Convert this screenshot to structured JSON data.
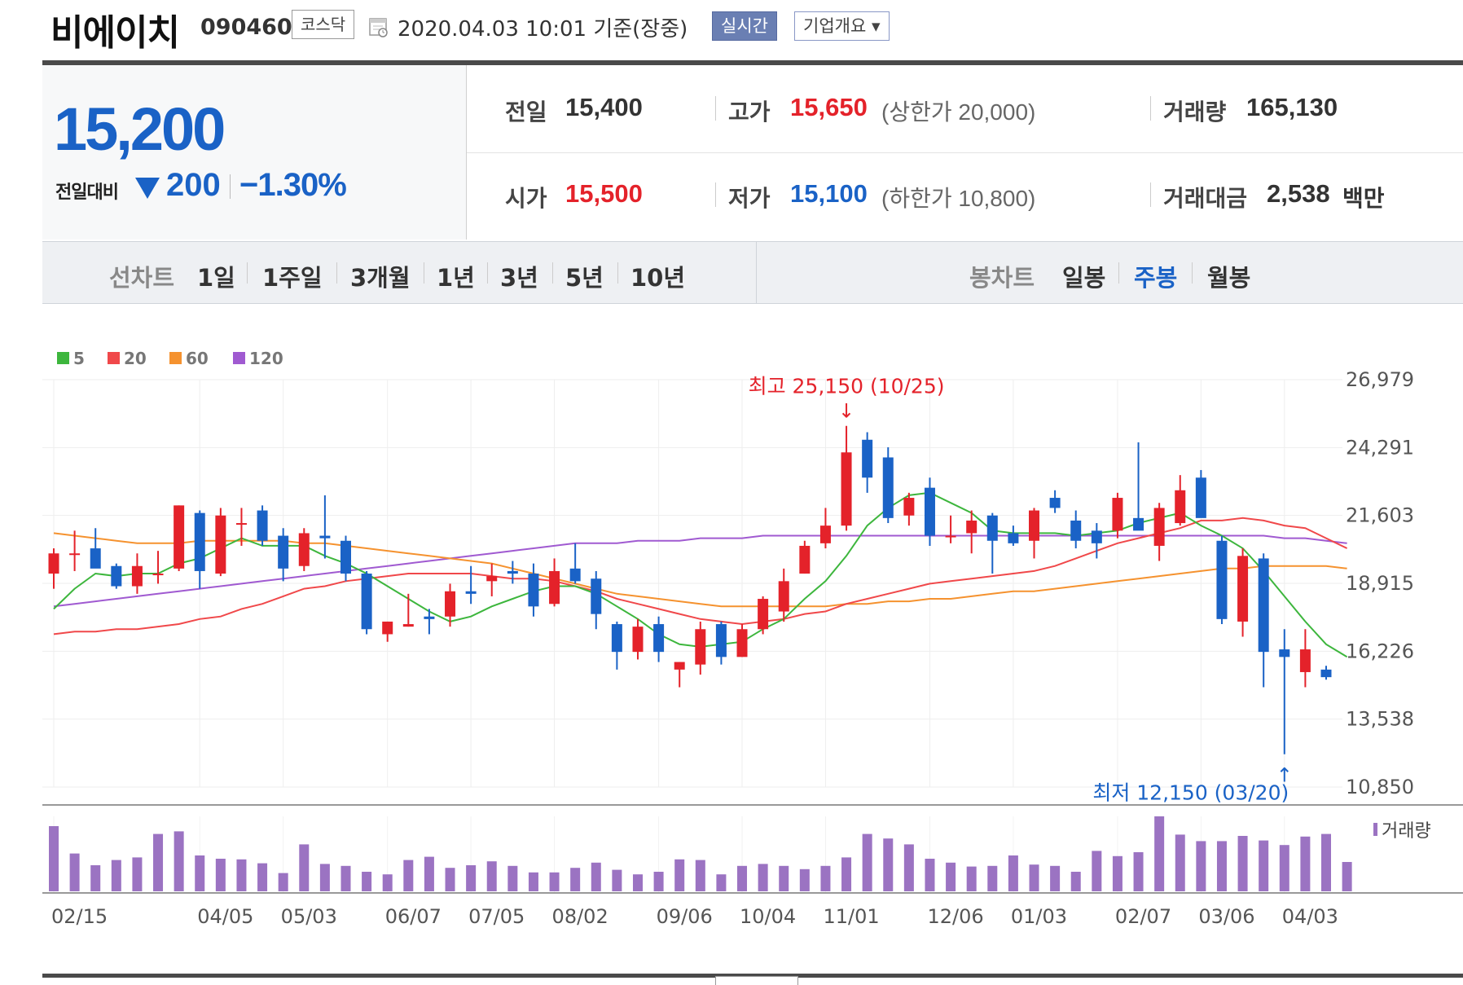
{
  "header": {
    "name": "비에이치",
    "code": "090460",
    "market": "코스닥",
    "timestamp": "2020.04.03 10:01  기준(장중)",
    "realtime_label": "실시간",
    "company_label": "기업개요 ▾"
  },
  "quote": {
    "current": "15,200",
    "diff_label": "전일대비",
    "diff": "200",
    "pct": "−1.30%",
    "prev_label": "전일",
    "prev": "15,400",
    "high_label": "고가",
    "high": "15,650",
    "upper_limit": "(상한가 20,000)",
    "volume_label": "거래량",
    "volume": "165,130",
    "open_label": "시가",
    "open": "15,500",
    "low_label": "저가",
    "low": "15,100",
    "lower_limit": "(하한가 10,800)",
    "amount_label": "거래대금",
    "amount": "2,538",
    "amount_unit": "백만"
  },
  "periods": {
    "line_title": "선차트",
    "line_items": [
      "1일",
      "1주일",
      "3개월",
      "1년",
      "3년",
      "5년",
      "10년"
    ],
    "candle_title": "봉차트",
    "candle_items": [
      "일봉",
      "주봉",
      "월봉"
    ],
    "active_candle": "주봉"
  },
  "colors": {
    "up": "#e4222a",
    "down": "#1a62c6",
    "ma5": "#3db63d",
    "ma20": "#f0484a",
    "ma60": "#f5922f",
    "ma120": "#a05ad1",
    "volume": "#9b73c2"
  },
  "chart_data": {
    "type": "candlestick",
    "legend": [
      "5",
      "20",
      "60",
      "120"
    ],
    "y_ticks": [
      "26,979",
      "24,291",
      "21,603",
      "18,915",
      "16,226",
      "13,538",
      "10,850"
    ],
    "ylim": [
      10850,
      26979
    ],
    "x_labels": [
      {
        "label": "02/15",
        "i": 0
      },
      {
        "label": "04/05",
        "i": 7
      },
      {
        "label": "05/03",
        "i": 11
      },
      {
        "label": "06/07",
        "i": 16
      },
      {
        "label": "07/05",
        "i": 20
      },
      {
        "label": "08/02",
        "i": 24
      },
      {
        "label": "09/06",
        "i": 29
      },
      {
        "label": "10/04",
        "i": 33
      },
      {
        "label": "11/01",
        "i": 37
      },
      {
        "label": "12/06",
        "i": 42
      },
      {
        "label": "01/03",
        "i": 46
      },
      {
        "label": "02/07",
        "i": 51
      },
      {
        "label": "03/06",
        "i": 55
      },
      {
        "label": "04/03",
        "i": 59
      }
    ],
    "high_annotation": "최고 25,150 (10/25)",
    "low_annotation": "최저 12,150 (03/20)",
    "volume_label": "거래량",
    "candles": [
      {
        "o": 19300,
        "h": 20300,
        "l": 18700,
        "c": 20100
      },
      {
        "o": 20100,
        "h": 21000,
        "l": 19400,
        "c": 20100
      },
      {
        "o": 20300,
        "h": 21100,
        "l": 19600,
        "c": 19500
      },
      {
        "o": 19600,
        "h": 19700,
        "l": 18700,
        "c": 18800
      },
      {
        "o": 18800,
        "h": 20100,
        "l": 18500,
        "c": 19600
      },
      {
        "o": 19300,
        "h": 20200,
        "l": 18900,
        "c": 19300
      },
      {
        "o": 19500,
        "h": 22000,
        "l": 19400,
        "c": 22000
      },
      {
        "o": 21700,
        "h": 21800,
        "l": 18700,
        "c": 19400
      },
      {
        "o": 19300,
        "h": 21900,
        "l": 19200,
        "c": 21600
      },
      {
        "o": 21300,
        "h": 21900,
        "l": 20400,
        "c": 21300
      },
      {
        "o": 21800,
        "h": 22000,
        "l": 20400,
        "c": 20600
      },
      {
        "o": 20800,
        "h": 21100,
        "l": 19000,
        "c": 19500
      },
      {
        "o": 19600,
        "h": 21100,
        "l": 19400,
        "c": 20900
      },
      {
        "o": 20800,
        "h": 22400,
        "l": 19900,
        "c": 20700
      },
      {
        "o": 20600,
        "h": 20800,
        "l": 19000,
        "c": 19300
      },
      {
        "o": 19300,
        "h": 19400,
        "l": 16900,
        "c": 17100
      },
      {
        "o": 16900,
        "h": 17400,
        "l": 16600,
        "c": 17400
      },
      {
        "o": 17200,
        "h": 18500,
        "l": 17200,
        "c": 17300
      },
      {
        "o": 17600,
        "h": 17900,
        "l": 16900,
        "c": 17500
      },
      {
        "o": 17600,
        "h": 18900,
        "l": 17200,
        "c": 18600
      },
      {
        "o": 18600,
        "h": 19600,
        "l": 18100,
        "c": 18500
      },
      {
        "o": 19000,
        "h": 19700,
        "l": 18400,
        "c": 19200
      },
      {
        "o": 19400,
        "h": 19800,
        "l": 18900,
        "c": 19300
      },
      {
        "o": 19300,
        "h": 19700,
        "l": 17600,
        "c": 18000
      },
      {
        "o": 18100,
        "h": 19900,
        "l": 18000,
        "c": 19400
      },
      {
        "o": 19500,
        "h": 20500,
        "l": 18900,
        "c": 19000
      },
      {
        "o": 19100,
        "h": 19400,
        "l": 17100,
        "c": 17700
      },
      {
        "o": 17300,
        "h": 17400,
        "l": 15500,
        "c": 16200
      },
      {
        "o": 16200,
        "h": 17500,
        "l": 15900,
        "c": 17200
      },
      {
        "o": 17300,
        "h": 17600,
        "l": 15800,
        "c": 16200
      },
      {
        "o": 15500,
        "h": 15800,
        "l": 14800,
        "c": 15800
      },
      {
        "o": 15700,
        "h": 17400,
        "l": 15300,
        "c": 17100
      },
      {
        "o": 17300,
        "h": 17400,
        "l": 15700,
        "c": 16000
      },
      {
        "o": 16000,
        "h": 17300,
        "l": 16000,
        "c": 17100
      },
      {
        "o": 17100,
        "h": 18400,
        "l": 16900,
        "c": 18300
      },
      {
        "o": 17800,
        "h": 19500,
        "l": 17400,
        "c": 19000
      },
      {
        "o": 19300,
        "h": 20600,
        "l": 19300,
        "c": 20400
      },
      {
        "o": 20500,
        "h": 21900,
        "l": 20300,
        "c": 21200
      },
      {
        "o": 21200,
        "h": 25150,
        "l": 21000,
        "c": 24100
      },
      {
        "o": 24600,
        "h": 24900,
        "l": 22500,
        "c": 23100
      },
      {
        "o": 23900,
        "h": 24300,
        "l": 21300,
        "c": 21500
      },
      {
        "o": 21600,
        "h": 22500,
        "l": 21200,
        "c": 22300
      },
      {
        "o": 22700,
        "h": 23100,
        "l": 20400,
        "c": 20800
      },
      {
        "o": 20800,
        "h": 21600,
        "l": 20500,
        "c": 20800
      },
      {
        "o": 20900,
        "h": 21800,
        "l": 20100,
        "c": 21400
      },
      {
        "o": 21600,
        "h": 21700,
        "l": 19300,
        "c": 20600
      },
      {
        "o": 20900,
        "h": 21200,
        "l": 20400,
        "c": 20500
      },
      {
        "o": 20600,
        "h": 21900,
        "l": 19900,
        "c": 21800
      },
      {
        "o": 22300,
        "h": 22600,
        "l": 21700,
        "c": 21900
      },
      {
        "o": 21400,
        "h": 21800,
        "l": 20300,
        "c": 20600
      },
      {
        "o": 21000,
        "h": 21300,
        "l": 19900,
        "c": 20500
      },
      {
        "o": 21000,
        "h": 22500,
        "l": 20700,
        "c": 22300
      },
      {
        "o": 21500,
        "h": 24500,
        "l": 21100,
        "c": 21000
      },
      {
        "o": 20400,
        "h": 22100,
        "l": 19800,
        "c": 21900
      },
      {
        "o": 21300,
        "h": 23200,
        "l": 21200,
        "c": 22600
      },
      {
        "o": 23100,
        "h": 23400,
        "l": 21600,
        "c": 21500
      },
      {
        "o": 20600,
        "h": 20800,
        "l": 17300,
        "c": 17500
      },
      {
        "o": 17400,
        "h": 20300,
        "l": 16800,
        "c": 20000
      },
      {
        "o": 19900,
        "h": 20100,
        "l": 14800,
        "c": 16200
      },
      {
        "o": 16300,
        "h": 17100,
        "l": 12150,
        "c": 16000
      },
      {
        "o": 15400,
        "h": 17100,
        "l": 14800,
        "c": 16300
      },
      {
        "o": 15500,
        "h": 15650,
        "l": 15100,
        "c": 15200
      }
    ],
    "volumes": [
      100,
      58,
      40,
      48,
      52,
      88,
      92,
      55,
      50,
      49,
      43,
      28,
      72,
      42,
      39,
      30,
      26,
      48,
      53,
      36,
      40,
      46,
      39,
      29,
      29,
      36,
      44,
      33,
      26,
      30,
      49,
      48,
      26,
      39,
      42,
      39,
      34,
      39,
      52,
      88,
      81,
      72,
      50,
      44,
      38,
      39,
      55,
      41,
      39,
      30,
      62,
      54,
      60,
      115,
      87,
      77,
      77,
      85,
      78,
      71,
      84,
      88,
      45
    ],
    "ma": {
      "5": [
        17900,
        18700,
        19300,
        19200,
        19300,
        19300,
        19700,
        19900,
        20300,
        20700,
        20400,
        20400,
        20400,
        20000,
        19700,
        19300,
        18800,
        18300,
        17800,
        17400,
        17600,
        18000,
        18300,
        18600,
        18800,
        18800,
        18500,
        18000,
        17500,
        16900,
        16500,
        16400,
        16500,
        16600,
        17100,
        17500,
        18300,
        19000,
        20000,
        21200,
        21900,
        22400,
        22500,
        22100,
        21700,
        21000,
        20900,
        20900,
        20900,
        20800,
        20900,
        21000,
        21300,
        21500,
        21700,
        21200,
        20800,
        20300,
        19400,
        18400,
        17400,
        16500,
        16000
      ],
      "20": [
        16900,
        17000,
        17000,
        17100,
        17100,
        17200,
        17300,
        17500,
        17600,
        17900,
        18100,
        18400,
        18700,
        18800,
        19000,
        19100,
        19200,
        19300,
        19300,
        19300,
        19300,
        19200,
        19100,
        19100,
        19000,
        18800,
        18600,
        18300,
        18100,
        17900,
        17700,
        17500,
        17400,
        17300,
        17400,
        17500,
        17700,
        17800,
        18100,
        18300,
        18500,
        18700,
        18900,
        19000,
        19100,
        19200,
        19300,
        19400,
        19600,
        19900,
        20200,
        20500,
        20700,
        20900,
        21100,
        21400,
        21400,
        21500,
        21400,
        21200,
        21100,
        20700,
        20300
      ],
      "60": [
        20900,
        20800,
        20700,
        20600,
        20500,
        20500,
        20500,
        20600,
        20600,
        20600,
        20600,
        20600,
        20500,
        20500,
        20400,
        20300,
        20200,
        20100,
        20000,
        19900,
        19800,
        19700,
        19500,
        19300,
        19100,
        18900,
        18700,
        18500,
        18400,
        18300,
        18200,
        18100,
        18000,
        18000,
        18000,
        18000,
        18000,
        18000,
        18100,
        18100,
        18200,
        18200,
        18300,
        18300,
        18400,
        18500,
        18600,
        18600,
        18700,
        18800,
        18900,
        19000,
        19100,
        19200,
        19300,
        19400,
        19500,
        19500,
        19600,
        19600,
        19600,
        19600,
        19500
      ],
      "120": [
        18000,
        18100,
        18200,
        18300,
        18400,
        18500,
        18600,
        18700,
        18800,
        18900,
        19000,
        19100,
        19200,
        19300,
        19400,
        19500,
        19600,
        19700,
        19800,
        19900,
        20000,
        20100,
        20200,
        20300,
        20400,
        20500,
        20500,
        20500,
        20600,
        20600,
        20600,
        20700,
        20700,
        20700,
        20800,
        20800,
        20800,
        20800,
        20800,
        20800,
        20800,
        20800,
        20800,
        20800,
        20800,
        20800,
        20800,
        20800,
        20800,
        20800,
        20800,
        20800,
        20800,
        20800,
        20800,
        20800,
        20800,
        20800,
        20800,
        20700,
        20700,
        20600,
        20500
      ]
    }
  }
}
